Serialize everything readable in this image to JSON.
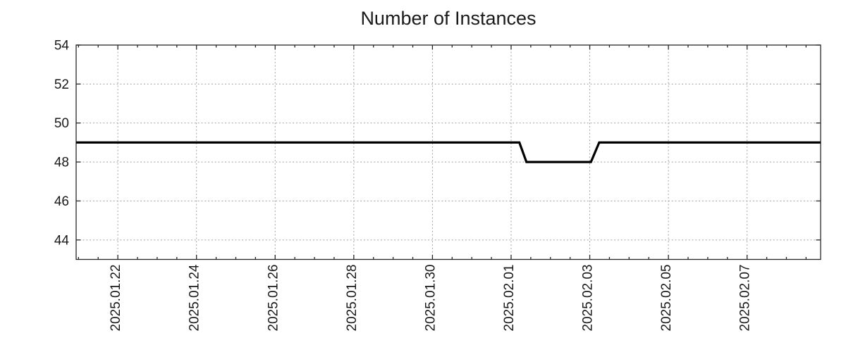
{
  "chart_data": {
    "type": "line",
    "title": "Number of Instances",
    "legend": null,
    "text_color": "#1a1a1a",
    "frame": {
      "border_color": "#262626",
      "background": "#ffffff"
    },
    "grid": {
      "show": true,
      "line_style": "dotted",
      "color": "#999999"
    },
    "series": [
      {
        "name": "instances",
        "color": "#000000",
        "line_width": 3.2,
        "points": [
          {
            "date": "2025-01-20 22:30",
            "day": -1.06,
            "value": 49
          },
          {
            "date": "2025-02-01 05:00",
            "day": 10.21,
            "value": 49
          },
          {
            "date": "2025-02-01 09:20",
            "day": 10.39,
            "value": 48
          },
          {
            "date": "2025-02-03 00:45",
            "day": 12.03,
            "value": 48
          },
          {
            "date": "2025-02-03 05:45",
            "day": 12.24,
            "value": 49
          },
          {
            "date": "2025-02-08 21:00",
            "day": 17.87,
            "value": 49
          }
        ]
      }
    ],
    "x_axis": {
      "epoch": "2025-01-22",
      "range_days": [
        -1.06,
        17.87
      ],
      "minor_tick_interval_days": 0.5,
      "major_ticks": [
        {
          "day": 0,
          "label": "2025.01.22"
        },
        {
          "day": 2,
          "label": "2025.01.24"
        },
        {
          "day": 4,
          "label": "2025.01.26"
        },
        {
          "day": 6,
          "label": "2025.01.28"
        },
        {
          "day": 8,
          "label": "2025.01.30"
        },
        {
          "day": 10,
          "label": "2025.02.01"
        },
        {
          "day": 12,
          "label": "2025.02.03"
        },
        {
          "day": 14,
          "label": "2025.02.05"
        },
        {
          "day": 16,
          "label": "2025.02.07"
        }
      ]
    },
    "y_axis": {
      "range": [
        43,
        54
      ],
      "ticks": [
        44,
        46,
        48,
        50,
        52,
        54
      ]
    }
  }
}
